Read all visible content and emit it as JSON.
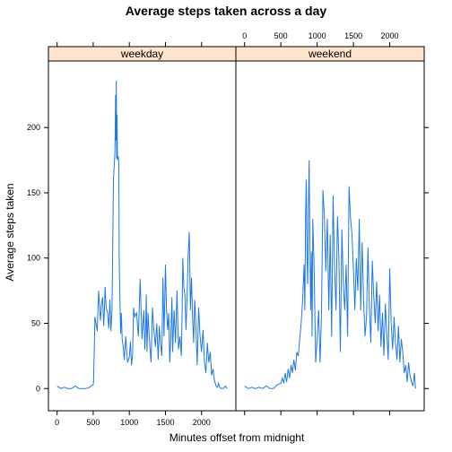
{
  "chart_data": {
    "type": "line",
    "title": "Average steps taken across a day",
    "xlabel": "Minutes offset from midnight",
    "ylabel": "Average steps taken",
    "xlim": [
      -120,
      2475
    ],
    "ylim": [
      -17,
      251
    ],
    "x_ticks": [
      0,
      500,
      1000,
      1500,
      2000
    ],
    "y_ticks": [
      0,
      50,
      100,
      150,
      200
    ],
    "x_tick_labels": [
      "0",
      "500",
      "1000",
      "1500",
      "2000"
    ],
    "y_tick_labels": [
      "0",
      "50",
      "100",
      "150",
      "200"
    ],
    "grid": false,
    "line_color": "#1f78e8",
    "strip_color": "#ffe5cc",
    "panels": [
      {
        "name": "weekday",
        "x": [
          0,
          55,
          100,
          150,
          200,
          250,
          300,
          350,
          400,
          450,
          500,
          505,
          525,
          555,
          575,
          600,
          615,
          630,
          645,
          655,
          665,
          680,
          700,
          715,
          730,
          745,
          760,
          780,
          800,
          805,
          810,
          815,
          820,
          825,
          830,
          835,
          840,
          845,
          850,
          855,
          860,
          870,
          880,
          890,
          900,
          915,
          930,
          950,
          975,
          1000,
          1015,
          1030,
          1045,
          1060,
          1075,
          1100,
          1125,
          1150,
          1175,
          1200,
          1215,
          1225,
          1235,
          1245,
          1260,
          1275,
          1300,
          1320,
          1340,
          1360,
          1380,
          1400,
          1415,
          1430,
          1450,
          1465,
          1480,
          1500,
          1515,
          1530,
          1545,
          1560,
          1575,
          1590,
          1600,
          1620,
          1640,
          1660,
          1680,
          1700,
          1720,
          1730,
          1740,
          1755,
          1770,
          1785,
          1800,
          1815,
          1830,
          1845,
          1860,
          1875,
          1890,
          1905,
          1920,
          1940,
          1960,
          1980,
          2000,
          2020,
          2040,
          2060,
          2080,
          2100,
          2120,
          2140,
          2160,
          2180,
          2200,
          2220,
          2235,
          2250,
          2275,
          2300,
          2330,
          2355
        ],
        "y": [
          2,
          0,
          1,
          0,
          0,
          2,
          0,
          0,
          0,
          1,
          3,
          5,
          55,
          44,
          75,
          52,
          65,
          70,
          48,
          60,
          78,
          62,
          58,
          46,
          68,
          44,
          60,
          160,
          180,
          200,
          225,
          190,
          236,
          176,
          210,
          180,
          175,
          178,
          176,
          172,
          100,
          70,
          42,
          58,
          38,
          32,
          22,
          40,
          20,
          24,
          36,
          18,
          25,
          62,
          55,
          58,
          40,
          84,
          38,
          60,
          30,
          45,
          72,
          28,
          58,
          40,
          20,
          62,
          45,
          32,
          50,
          22,
          48,
          35,
          25,
          85,
          40,
          95,
          60,
          45,
          58,
          20,
          40,
          70,
          28,
          60,
          35,
          75,
          30,
          40,
          25,
          55,
          100,
          78,
          72,
          45,
          70,
          102,
          120,
          60,
          85,
          55,
          35,
          68,
          50,
          18,
          62,
          40,
          28,
          45,
          20,
          12,
          35,
          20,
          28,
          10,
          15,
          6,
          2,
          1,
          4,
          1,
          0,
          0,
          2,
          0
        ]
      },
      {
        "name": "weekend",
        "x": [
          0,
          50,
          100,
          150,
          200,
          250,
          300,
          350,
          400,
          450,
          500,
          520,
          540,
          560,
          580,
          600,
          620,
          640,
          660,
          680,
          700,
          720,
          740,
          760,
          780,
          800,
          810,
          820,
          830,
          840,
          850,
          860,
          870,
          880,
          890,
          900,
          910,
          920,
          930,
          940,
          960,
          980,
          1000,
          1020,
          1040,
          1060,
          1080,
          1100,
          1120,
          1140,
          1160,
          1180,
          1200,
          1220,
          1240,
          1260,
          1280,
          1300,
          1320,
          1340,
          1360,
          1380,
          1400,
          1420,
          1440,
          1460,
          1480,
          1500,
          1520,
          1540,
          1560,
          1580,
          1600,
          1620,
          1640,
          1660,
          1680,
          1700,
          1720,
          1740,
          1760,
          1780,
          1800,
          1820,
          1840,
          1860,
          1880,
          1900,
          1920,
          1940,
          1960,
          1980,
          2000,
          2020,
          2040,
          2060,
          2080,
          2100,
          2120,
          2140,
          2160,
          2180,
          2200,
          2220,
          2240,
          2260,
          2280,
          2300,
          2320,
          2340,
          2355
        ],
        "y": [
          2,
          0,
          1,
          0,
          1,
          0,
          2,
          0,
          0,
          3,
          4,
          8,
          4,
          12,
          5,
          15,
          8,
          18,
          12,
          22,
          14,
          28,
          25,
          38,
          50,
          68,
          82,
          95,
          60,
          130,
          160,
          100,
          80,
          140,
          175,
          115,
          60,
          105,
          40,
          130,
          88,
          20,
          38,
          60,
          20,
          58,
          152,
          132,
          90,
          130,
          60,
          118,
          40,
          148,
          92,
          60,
          132,
          100,
          28,
          122,
          80,
          60,
          95,
          40,
          155,
          130,
          118,
          92,
          60,
          100,
          75,
          130,
          60,
          112,
          68,
          40,
          55,
          108,
          62,
          35,
          98,
          70,
          50,
          82,
          44,
          72,
          32,
          58,
          25,
          65,
          42,
          22,
          92,
          50,
          30,
          55,
          35,
          22,
          48,
          20,
          38,
          28,
          12,
          18,
          5,
          20,
          10,
          5,
          2,
          12,
          0
        ]
      }
    ]
  }
}
